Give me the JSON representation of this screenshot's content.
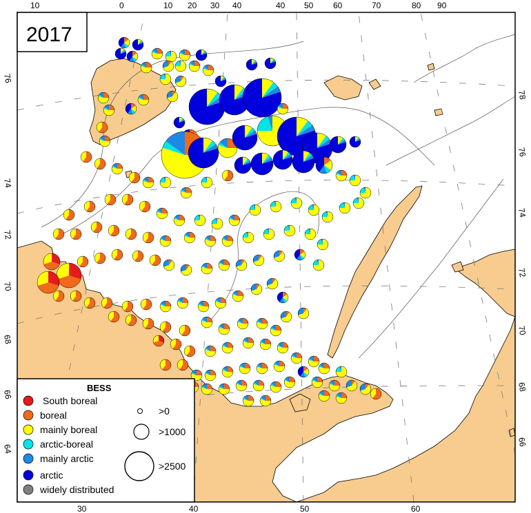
{
  "year_label": "2017",
  "colors": {
    "land": "#f7cc8e",
    "sea": "#ffffff",
    "coast": "#000000",
    "depth_contour": "#555555",
    "South boreal": "#e41a1c",
    "boreal": "#f06a1a",
    "mainly boreal": "#ffff00",
    "arctic-boreal": "#00e5e5",
    "mainly arctic": "#1e88e5",
    "arctic": "#0000dd",
    "widely distributed": "#808080"
  },
  "graticule": {
    "top_lon_labels": [
      "10",
      "0",
      "10",
      "20",
      "30",
      "40",
      "50",
      "60",
      "70",
      "80",
      "90"
    ],
    "bottom_lon_labels": [
      "30",
      "40",
      "50",
      "60"
    ],
    "left_lat_labels": [
      "76",
      "74",
      "72",
      "70",
      "68",
      "66",
      "64"
    ],
    "right_lat_labels": [
      "78",
      "76",
      "74",
      "72",
      "70",
      "68",
      "66"
    ]
  },
  "legend": {
    "title": "BESS",
    "groups": [
      {
        "label": "South boreal",
        "color_key": "South boreal"
      },
      {
        "label": "boreal",
        "color_key": "boreal"
      },
      {
        "label": "mainly boreal",
        "color_key": "mainly boreal"
      },
      {
        "label": "arctic-boreal",
        "color_key": "arctic-boreal"
      },
      {
        "label": "mainly arctic",
        "color_key": "mainly arctic"
      },
      {
        "label": "arctic",
        "color_key": "arctic"
      },
      {
        "label": "widely distributed",
        "color_key": "widely distributed"
      }
    ],
    "sizes": [
      {
        "label": ">0",
        "value": 0
      },
      {
        "label": ">1000",
        "value": 1000
      },
      {
        "label": ">2500",
        "value": 2500
      }
    ]
  },
  "stations": {
    "groups": [
      "South boreal",
      "boreal",
      "mainly boreal",
      "arctic-boreal",
      "mainly arctic",
      "arctic",
      "widely distributed"
    ],
    "pie_profiles": {
      "a": [
        0,
        0.15,
        0.2,
        0.1,
        0.15,
        0.4,
        0
      ],
      "b": [
        0,
        0.25,
        0.55,
        0.05,
        0.15,
        0,
        0
      ],
      "c": [
        0,
        0.6,
        0.4,
        0,
        0,
        0,
        0
      ],
      "d": [
        0.3,
        0.4,
        0.3,
        0,
        0,
        0,
        0
      ],
      "e": [
        0,
        0,
        0.75,
        0.2,
        0.05,
        0,
        0
      ],
      "f": [
        0,
        0.1,
        0.6,
        0,
        0.3,
        0,
        0
      ],
      "g": [
        0,
        0,
        0.1,
        0.05,
        0.05,
        0.8,
        0
      ]
    }
  }
}
